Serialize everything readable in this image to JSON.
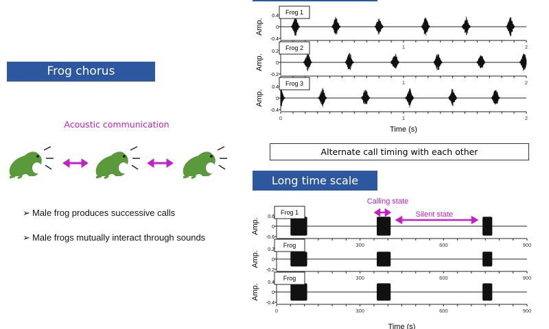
{
  "left": {
    "title": "Frog chorus",
    "subtitle": "Acoustic communication",
    "bullets": [
      "Male frog produces successive calls",
      "Male frogs mutually interact through sounds"
    ],
    "bullet_marker": "➢",
    "frog_icon": "frog-icon",
    "arrow_icon": "double-arrow-icon"
  },
  "right": {
    "short_caption": "Alternate call timing with each other",
    "long_title": "Long time scale",
    "calling_state": "Calling state",
    "silent_state": "Silent state"
  },
  "colors": {
    "title_blue": "#2d579f",
    "magenta": "#c21fc8",
    "frog_green": "#5a9a3a"
  },
  "chart_data": [
    {
      "type": "line",
      "title": "",
      "xlabel": "Time (s)",
      "ylabel": "Amp.",
      "xlim": [
        0,
        2
      ],
      "xticks": [
        "0",
        "1",
        "2"
      ],
      "grid": false,
      "panels": [
        {
          "name": "Frog 1",
          "ylim": [
            -0.4,
            0.4
          ],
          "yticks": [
            "0.4",
            "0",
            "-0.4"
          ],
          "call_centers_s": [
            0.12,
            0.45,
            0.8,
            1.18,
            1.51,
            1.87
          ],
          "peak_amp": 0.35
        },
        {
          "name": "Frog 2",
          "ylim": [
            -0.2,
            0.2
          ],
          "yticks": [
            "0.2",
            "0",
            "-0.2"
          ],
          "call_centers_s": [
            0.22,
            0.56,
            0.93,
            1.28,
            1.63,
            1.98
          ],
          "peak_amp": 0.17
        },
        {
          "name": "Frog 3",
          "ylim": [
            -0.4,
            0.4
          ],
          "yticks": [
            "0.4",
            "0",
            "-0.4"
          ],
          "call_centers_s": [
            0.0,
            0.34,
            0.69,
            1.05,
            1.4,
            1.75
          ],
          "peak_amp": 0.35
        }
      ]
    },
    {
      "type": "line",
      "title": "",
      "xlabel": "Time (s)",
      "ylabel": "Amp.",
      "xlim": [
        0,
        900
      ],
      "xticks": [
        "0",
        "300",
        "600",
        "900"
      ],
      "grid": false,
      "panels": [
        {
          "name": "Frog 1",
          "ylim": [
            -0.6,
            0.6
          ],
          "yticks": [
            "0.6",
            "0",
            "-0.6"
          ],
          "calling_bouts_s": [
            [
              50,
              110
            ],
            [
              360,
              410
            ],
            [
              740,
              775
            ]
          ],
          "peak_amp": 0.55
        },
        {
          "name": "Frog",
          "ylim": [
            -0.25,
            0.25
          ],
          "yticks": [
            "0.2",
            "0",
            "-0.2"
          ],
          "calling_bouts_s": [
            [
              50,
              110
            ],
            [
              360,
              410
            ],
            [
              740,
              775
            ]
          ],
          "peak_amp": 0.18
        },
        {
          "name": "Frog",
          "ylim": [
            -0.45,
            0.45
          ],
          "yticks": [
            "0.4",
            "0",
            "-0.4"
          ],
          "calling_bouts_s": [
            [
              50,
              110
            ],
            [
              360,
              410
            ],
            [
              740,
              775
            ]
          ],
          "peak_amp": 0.38
        }
      ]
    }
  ]
}
